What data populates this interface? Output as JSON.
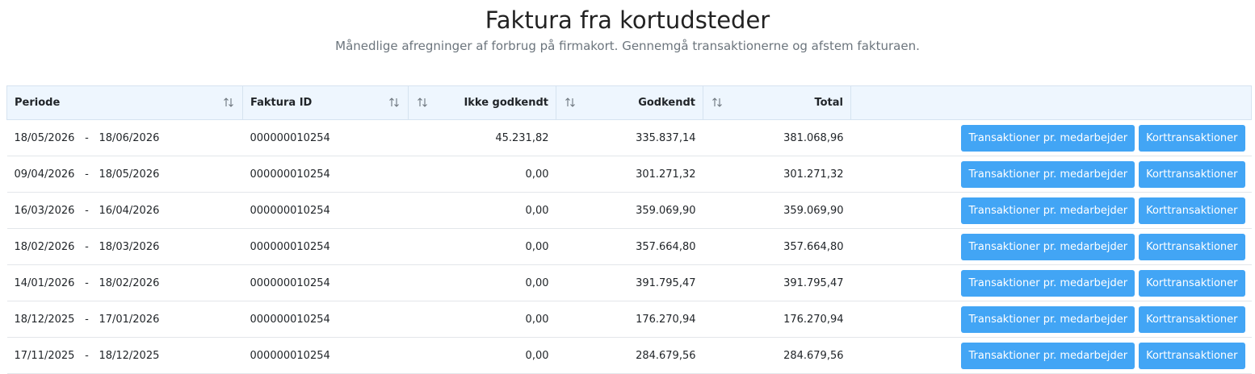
{
  "header": {
    "title": "Faktura fra kortudsteder",
    "subtitle": "Månedlige afregninger af forbrug på firmakort. Gennemgå transaktionerne og afstem fakturaen."
  },
  "table": {
    "columns": [
      "Periode",
      "Faktura ID",
      "Ikke godkendt",
      "Godkendt",
      "Total"
    ],
    "period_separator": "-",
    "actions": [
      "Transaktioner pr. medarbejder",
      "Korttransaktioner"
    ],
    "rows": [
      [
        "18/05/2026",
        "18/06/2026",
        "000000010254",
        "45.231,82",
        "335.837,14",
        "381.068,96"
      ],
      [
        "09/04/2026",
        "18/05/2026",
        "000000010254",
        "0,00",
        "301.271,32",
        "301.271,32"
      ],
      [
        "16/03/2026",
        "16/04/2026",
        "000000010254",
        "0,00",
        "359.069,90",
        "359.069,90"
      ],
      [
        "18/02/2026",
        "18/03/2026",
        "000000010254",
        "0,00",
        "357.664,80",
        "357.664,80"
      ],
      [
        "14/01/2026",
        "18/02/2026",
        "000000010254",
        "0,00",
        "391.795,47",
        "391.795,47"
      ],
      [
        "18/12/2025",
        "17/01/2026",
        "000000010254",
        "0,00",
        "176.270,94",
        "176.270,94"
      ],
      [
        "17/11/2025",
        "18/12/2025",
        "000000010254",
        "0,00",
        "284.679,56",
        "284.679,56"
      ]
    ]
  }
}
